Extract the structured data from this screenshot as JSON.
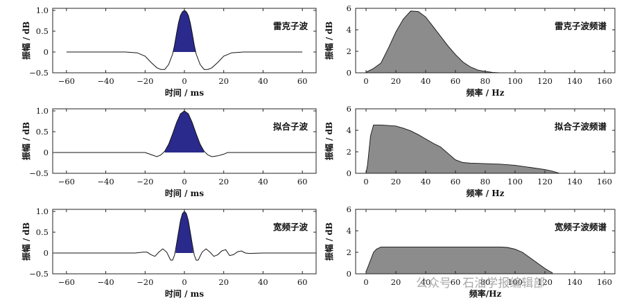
{
  "chart_data": [
    {
      "type": "line",
      "title": "",
      "annotation": "雷克子波",
      "xlabel": "时间 / ms",
      "ylabel": "振幅 / dB",
      "xlim": [
        -67,
        67
      ],
      "ylim": [
        -0.5,
        1.05
      ],
      "xticks": [
        -60,
        -40,
        -20,
        0,
        20,
        40,
        60
      ],
      "yticks": [
        -0.5,
        0,
        0.5,
        1.0
      ],
      "ytick_labels": [
        "−0.5",
        "0",
        "0.5",
        "1.0"
      ],
      "fill_color": "#2a2a8c",
      "fill_range": [
        -6,
        6
      ],
      "x": [
        -60,
        -50,
        -40,
        -30,
        -24,
        -20,
        -17,
        -14,
        -12,
        -10,
        -8,
        -6,
        -5,
        -4,
        -3,
        -2,
        -1,
        0,
        1,
        2,
        3,
        4,
        5,
        6,
        8,
        10,
        12,
        14,
        17,
        20,
        24,
        30,
        40,
        50,
        60
      ],
      "y": [
        0,
        0,
        0,
        0,
        -0.02,
        -0.1,
        -0.25,
        -0.38,
        -0.42,
        -0.42,
        -0.3,
        -0.05,
        0.17,
        0.45,
        0.7,
        0.88,
        0.97,
        1.0,
        0.97,
        0.88,
        0.7,
        0.45,
        0.17,
        -0.05,
        -0.3,
        -0.42,
        -0.42,
        -0.38,
        -0.25,
        -0.1,
        -0.02,
        0,
        0,
        0,
        0
      ]
    },
    {
      "type": "area",
      "title": "",
      "annotation": "雷克子波频谱",
      "xlabel": "频率 / Hz",
      "ylabel": "振幅 / dB",
      "xlim": [
        -7,
        167
      ],
      "ylim": [
        0,
        6
      ],
      "xticks": [
        0,
        20,
        40,
        60,
        80,
        100,
        120,
        140,
        160
      ],
      "yticks": [
        0,
        2,
        4,
        6
      ],
      "fill_color": "#8c8c8c",
      "x": [
        0,
        5,
        10,
        15,
        20,
        25,
        30,
        35,
        40,
        45,
        50,
        55,
        60,
        65,
        70,
        75,
        80,
        85,
        90
      ],
      "y": [
        0.05,
        0.4,
        0.9,
        2.3,
        3.8,
        5.0,
        5.75,
        5.7,
        5.2,
        4.3,
        3.4,
        2.5,
        1.7,
        1.0,
        0.55,
        0.25,
        0.12,
        0.04,
        0.0
      ]
    },
    {
      "type": "line",
      "title": "",
      "annotation": "拟合子波",
      "xlabel": "时间 / ms",
      "ylabel": "振幅 / dB",
      "xlim": [
        -67,
        67
      ],
      "ylim": [
        -0.5,
        1.05
      ],
      "xticks": [
        -60,
        -40,
        -20,
        0,
        20,
        40,
        60
      ],
      "yticks": [
        -0.5,
        0,
        0.5,
        1.0
      ],
      "ytick_labels": [
        "−0.5",
        "0",
        "0.5",
        "1.0"
      ],
      "fill_color": "#2a2a8c",
      "fill_range": [
        -10,
        10
      ],
      "x": [
        -67,
        -40,
        -20,
        -17,
        -14,
        -12,
        -10,
        -8,
        -6,
        -4,
        -2,
        0,
        2,
        4,
        6,
        8,
        10,
        12,
        14,
        17,
        20,
        22,
        25,
        40,
        67
      ],
      "y": [
        0,
        0,
        0,
        -0.05,
        -0.1,
        -0.06,
        0.03,
        0.2,
        0.45,
        0.72,
        0.93,
        1.0,
        0.93,
        0.72,
        0.45,
        0.2,
        0.03,
        -0.06,
        -0.1,
        -0.08,
        -0.04,
        0.0,
        0,
        0,
        0
      ]
    },
    {
      "type": "area",
      "title": "",
      "annotation": "拟合子波频谱",
      "xlabel": "频率 / Hz",
      "ylabel": "振幅 / dB",
      "xlim": [
        -7,
        167
      ],
      "ylim": [
        0,
        6
      ],
      "xticks": [
        0,
        20,
        40,
        60,
        80,
        100,
        120,
        140,
        160
      ],
      "yticks": [
        0,
        2,
        4,
        6
      ],
      "fill_color": "#8c8c8c",
      "x": [
        0,
        1,
        3,
        5,
        10,
        20,
        25,
        30,
        35,
        40,
        45,
        50,
        55,
        60,
        65,
        70,
        80,
        90,
        100,
        110,
        120,
        125,
        130
      ],
      "y": [
        0.0,
        0.8,
        3.5,
        4.5,
        4.5,
        4.4,
        4.2,
        3.95,
        3.6,
        3.2,
        2.8,
        2.45,
        1.85,
        1.25,
        1.0,
        0.95,
        0.9,
        0.85,
        0.75,
        0.55,
        0.35,
        0.2,
        0.0
      ]
    },
    {
      "type": "line",
      "title": "",
      "annotation": "宽频子波",
      "xlabel": "时间 / ms",
      "ylabel": "振幅 / dB",
      "xlim": [
        -67,
        67
      ],
      "ylim": [
        -0.5,
        1.05
      ],
      "xticks": [
        -60,
        -40,
        -20,
        0,
        20,
        40,
        60
      ],
      "yticks": [
        -0.5,
        0,
        0.5,
        1.0
      ],
      "ytick_labels": [
        "−0.5",
        "0",
        "0.5",
        "1.0"
      ],
      "fill_color": "#2a2a8c",
      "fill_range": [
        -4.5,
        4.5
      ],
      "x": [
        -67,
        -25,
        -21,
        -19,
        -17,
        -15,
        -13,
        -11,
        -9,
        -7,
        -6,
        -5,
        -4,
        -3,
        -2,
        -1,
        0,
        1,
        2,
        3,
        4,
        5,
        6,
        7,
        9,
        11,
        13,
        15,
        17,
        19,
        21,
        23,
        25,
        27,
        29,
        31,
        33,
        40,
        67
      ],
      "y": [
        0,
        0,
        0.02,
        0.02,
        -0.04,
        -0.08,
        0.02,
        0.1,
        0.02,
        -0.17,
        -0.17,
        -0.05,
        0.22,
        0.5,
        0.78,
        0.95,
        1.0,
        0.95,
        0.78,
        0.5,
        0.22,
        -0.05,
        -0.17,
        -0.17,
        0.02,
        0.1,
        0.02,
        -0.08,
        -0.04,
        0.05,
        0.08,
        -0.06,
        -0.04,
        0.03,
        0.05,
        0,
        -0.01,
        0,
        0
      ]
    },
    {
      "type": "area",
      "title": "",
      "annotation": "宽频子波频谱",
      "xlabel": "频率/Hz",
      "ylabel": "振幅 / dB",
      "xlim": [
        -7,
        167
      ],
      "ylim": [
        0,
        6
      ],
      "xticks": [
        0,
        20,
        40,
        60,
        80,
        100,
        120,
        140,
        160
      ],
      "yticks": [
        0,
        2,
        4,
        6
      ],
      "fill_color": "#8c8c8c",
      "x": [
        0,
        2,
        5,
        7,
        10,
        20,
        40,
        60,
        80,
        90,
        95,
        100,
        105,
        110,
        115,
        120,
        123,
        125
      ],
      "y": [
        0.2,
        0.9,
        2.0,
        2.3,
        2.5,
        2.5,
        2.5,
        2.5,
        2.5,
        2.5,
        2.45,
        2.3,
        2.0,
        1.5,
        1.0,
        0.5,
        0.25,
        0.1
      ]
    }
  ],
  "watermark": "公众号 · 石油学报编辑部"
}
